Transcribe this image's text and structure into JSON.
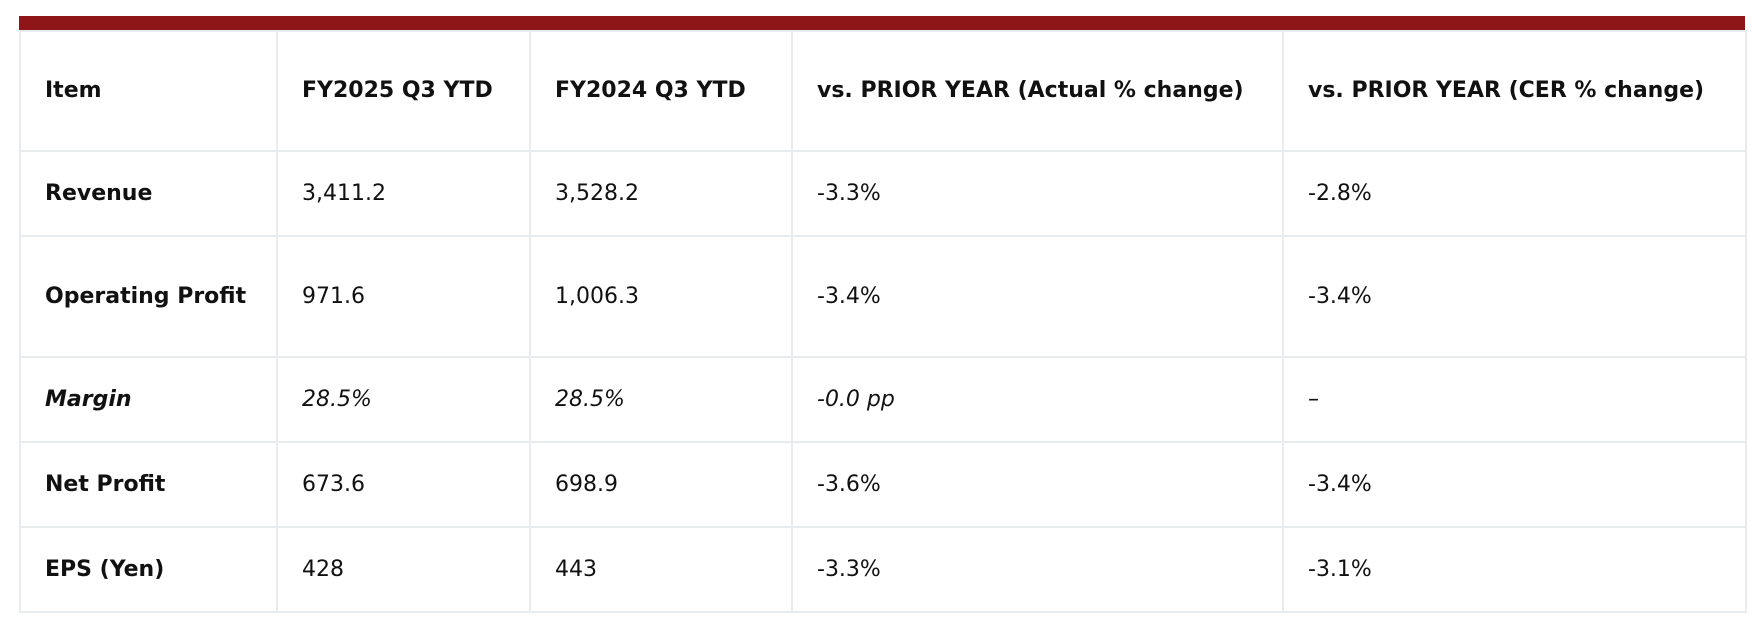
{
  "table": {
    "header": [
      "Item",
      "FY2025 Q3 YTD",
      "FY2024 Q3 YTD",
      "vs. PRIOR YEAR (Actual % change)",
      "vs. PRIOR YEAR (CER % change)"
    ],
    "rows": [
      [
        "Revenue",
        "3,411.2",
        "3,528.2",
        "-3.3%",
        "-2.8%"
      ],
      [
        "Operating Profit",
        "971.6",
        "1,006.3",
        "-3.4%",
        "-3.4%"
      ],
      [
        "Margin",
        "28.5%",
        "28.5%",
        "-0.0 pp",
        "–"
      ],
      [
        "Net Profit",
        "673.6",
        "698.9",
        "-3.6%",
        "-3.4%"
      ],
      [
        "EPS (Yen)",
        "428",
        "443",
        "-3.3%",
        "-3.1%"
      ]
    ]
  }
}
